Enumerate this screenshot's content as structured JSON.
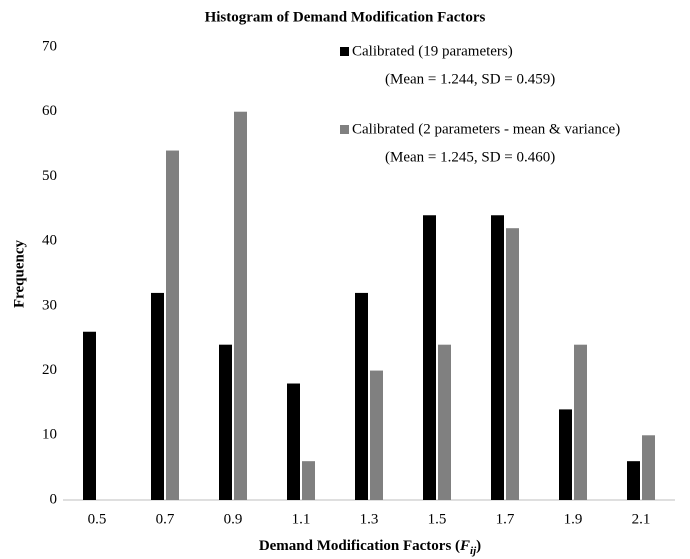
{
  "chart_data": {
    "type": "bar",
    "title": "Histogram of Demand Modification Factors",
    "y_label": "Frequency",
    "x_label": [
      "Demand Modification Factors (",
      "F",
      "ij",
      ")"
    ],
    "categories": [
      "0.5",
      "0.7",
      "0.9",
      "1.1",
      "1.3",
      "1.5",
      "1.7",
      "1.9",
      "2.1"
    ],
    "series": [
      {
        "name": "Calibrated (19 parameters)",
        "note": "(Mean = 1.244, SD = 0.459)",
        "color": "#000000",
        "values": [
          26,
          32,
          24,
          18,
          32,
          44,
          44,
          14,
          6
        ]
      },
      {
        "name": "Calibrated (2 parameters - mean & variance)",
        "note": "(Mean = 1.245, SD = 0.460)",
        "color": "#808080",
        "values": [
          0,
          54,
          60,
          6,
          20,
          24,
          42,
          24,
          10
        ]
      }
    ],
    "ylim": [
      0,
      70
    ],
    "yticks": [
      0,
      10,
      20,
      30,
      40,
      50,
      60,
      70
    ],
    "grid": false,
    "legend": "upper right"
  }
}
